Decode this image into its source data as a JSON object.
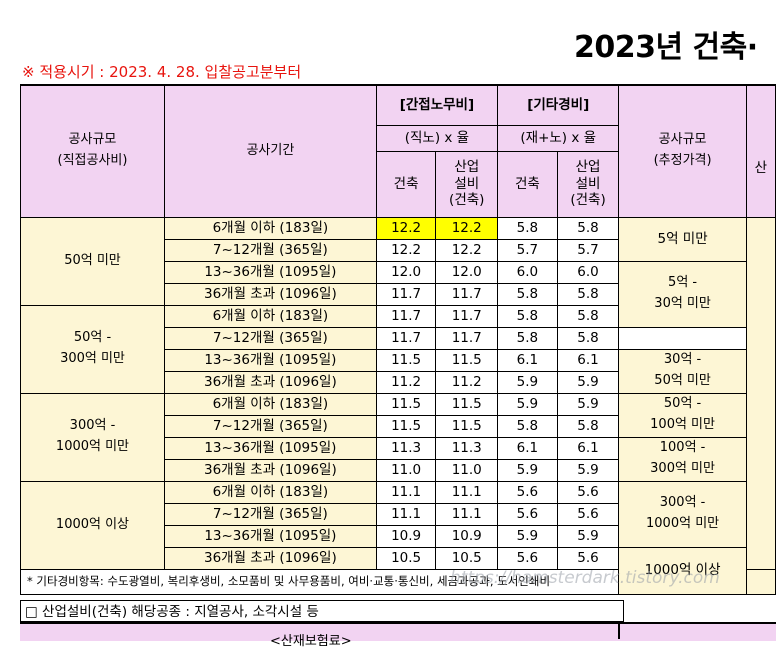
{
  "title": "2023년 건축·",
  "notice": "※ 적용시기 : 2023. 4. 28.  입찰공고분부터",
  "header": {
    "scale_label": "공사규모",
    "scale_sub": "(직접공사비)",
    "period_label": "공사기간",
    "indirect_title": "[간접노무비]",
    "indirect_formula": "(직노) x 율",
    "other_title": "[기타경비]",
    "other_formula": "(재+노) x 율",
    "col_building": "건축",
    "col_industrial_1": "산업",
    "col_industrial_2": "설비",
    "col_industrial_3": "(건축)",
    "right_scale_label": "공사규모",
    "right_scale_sub": "(추정가격)",
    "right_cut": "산"
  },
  "groups": [
    {
      "label_1": "50억 미만",
      "label_2": ""
    },
    {
      "label_1": "50억 -",
      "label_2": "300억 미만"
    },
    {
      "label_1": "300억 -",
      "label_2": "1000억 미만"
    },
    {
      "label_1": "1000억 이상",
      "label_2": ""
    }
  ],
  "rows": [
    {
      "period": "6개월 이하 (183일)",
      "ib": "12.2",
      "ii": "12.2",
      "ob": "5.8",
      "oi": "5.8"
    },
    {
      "period": "7~12개월 (365일)",
      "ib": "12.2",
      "ii": "12.2",
      "ob": "5.7",
      "oi": "5.7"
    },
    {
      "period": "13~36개월 (1095일)",
      "ib": "12.0",
      "ii": "12.0",
      "ob": "6.0",
      "oi": "6.0"
    },
    {
      "period": "36개월 초과 (1096일)",
      "ib": "11.7",
      "ii": "11.7",
      "ob": "5.8",
      "oi": "5.8"
    },
    {
      "period": "6개월 이하 (183일)",
      "ib": "11.7",
      "ii": "11.7",
      "ob": "5.8",
      "oi": "5.8"
    },
    {
      "period": "7~12개월 (365일)",
      "ib": "11.7",
      "ii": "11.7",
      "ob": "5.8",
      "oi": "5.8"
    },
    {
      "period": "13~36개월 (1095일)",
      "ib": "11.5",
      "ii": "11.5",
      "ob": "6.1",
      "oi": "6.1"
    },
    {
      "period": "36개월 초과 (1096일)",
      "ib": "11.2",
      "ii": "11.2",
      "ob": "5.9",
      "oi": "5.9"
    },
    {
      "period": "6개월 이하 (183일)",
      "ib": "11.5",
      "ii": "11.5",
      "ob": "5.9",
      "oi": "5.9"
    },
    {
      "period": "7~12개월 (365일)",
      "ib": "11.5",
      "ii": "11.5",
      "ob": "5.8",
      "oi": "5.8"
    },
    {
      "period": "13~36개월 (1095일)",
      "ib": "11.3",
      "ii": "11.3",
      "ob": "6.1",
      "oi": "6.1"
    },
    {
      "period": "36개월 초과 (1096일)",
      "ib": "11.0",
      "ii": "11.0",
      "ob": "5.9",
      "oi": "5.9"
    },
    {
      "period": "6개월 이하 (183일)",
      "ib": "11.1",
      "ii": "11.1",
      "ob": "5.6",
      "oi": "5.6"
    },
    {
      "period": "7~12개월 (365일)",
      "ib": "11.1",
      "ii": "11.1",
      "ob": "5.6",
      "oi": "5.6"
    },
    {
      "period": "13~36개월 (1095일)",
      "ib": "10.9",
      "ii": "10.9",
      "ob": "5.9",
      "oi": "5.9"
    },
    {
      "period": "36개월 초과 (1096일)",
      "ib": "10.5",
      "ii": "10.5",
      "ob": "5.6",
      "oi": "5.6"
    }
  ],
  "right_groups": [
    {
      "label_1": "5억 미만",
      "label_2": ""
    },
    {
      "label_1": "5억 -",
      "label_2": "30억 미만"
    },
    {
      "label_1": "30억 -",
      "label_2": "50억 미만"
    },
    {
      "label_1": "50억 -",
      "label_2": "100억 미만"
    },
    {
      "label_1": "100억 -",
      "label_2": "300억 미만"
    },
    {
      "label_1": "300억 -",
      "label_2": "1000억 미만"
    },
    {
      "label_1": "1000억 이상",
      "label_2": ""
    }
  ],
  "footnote": "* 기타경비항목: 수도광열비, 복리후생비, 소모품비 및 사무용품비, 여비·교통·통신비, 세금과공과, 도서인쇄비",
  "industrial_note": "□ 산업설비(건축) 해당공종 : 지열공사, 소각시설 등",
  "watermark": "https://hamsterdark.tistory.com",
  "bottom_cut": "<산재보험료>",
  "colors": {
    "header_bg": "#f2d3f2",
    "label_bg": "#fdf6d5",
    "highlight": "#ffff00",
    "notice": "#e8140e"
  }
}
